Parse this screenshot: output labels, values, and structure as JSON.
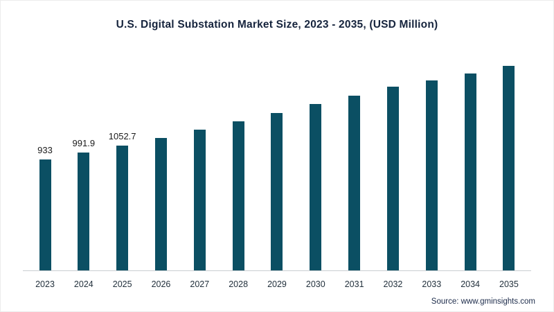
{
  "chart_data": {
    "type": "bar",
    "title": "U.S. Digital Substation Market Size, 2023 - 2035,  (USD Million)",
    "categories": [
      "2023",
      "2024",
      "2025",
      "2026",
      "2027",
      "2028",
      "2029",
      "2030",
      "2031",
      "2032",
      "2033",
      "2034",
      "2035"
    ],
    "values": [
      933,
      991.9,
      1052.7,
      1116,
      1184,
      1253,
      1326,
      1398,
      1470,
      1543,
      1598,
      1655,
      1720
    ],
    "data_labels": [
      "933",
      "991.9",
      "1052.7",
      "",
      "",
      "",
      "",
      "",
      "",
      "",
      "",
      "",
      ""
    ],
    "xlabel": "",
    "ylabel": "",
    "ylim": [
      0,
      1800
    ],
    "grid": false,
    "legend": "none",
    "bar_color": "#0b4f63",
    "axis_color": "#c9cdd1"
  },
  "footer": {
    "source": "Source: www.gminsights.com"
  }
}
